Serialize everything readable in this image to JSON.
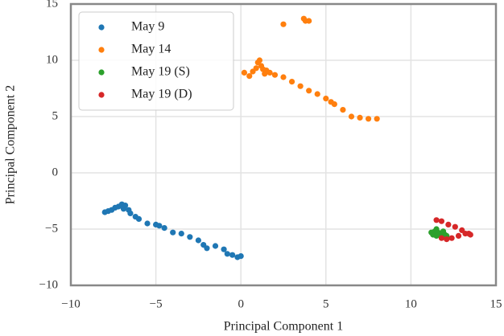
{
  "chart_data": {
    "type": "scatter",
    "xlabel": "Principal Component 1",
    "ylabel": "Principal Component 2",
    "xlim": [
      -10,
      15
    ],
    "ylim": [
      -10,
      15
    ],
    "xticks": [
      {
        "value": -10,
        "label": "−10"
      },
      {
        "value": -5,
        "label": "−5"
      },
      0,
      5,
      10,
      15
    ],
    "yticks": [
      {
        "value": -10,
        "label": "−10"
      },
      {
        "value": -5,
        "label": "−5"
      },
      0,
      5,
      10,
      15
    ],
    "grid": true,
    "legend": "upper left",
    "series": [
      {
        "name": "May 9",
        "color": "#1f77b4",
        "x": [
          -8,
          -7.8,
          -7.6,
          -7.4,
          -7.2,
          -7,
          -6.9,
          -6.8,
          -6.6,
          -6.5,
          -6.2,
          -6,
          -5.5,
          -5,
          -4.5,
          -4.8,
          -4,
          -3.5,
          -3,
          -2.5,
          -2.2,
          -2,
          -1.5,
          -1,
          -0.8,
          -0.5,
          -0.2,
          0
        ],
        "values": [
          -3.5,
          -3.4,
          -3.3,
          -3.1,
          -3.0,
          -2.8,
          -3.2,
          -2.9,
          -3.3,
          -3.6,
          -3.9,
          -4.1,
          -4.5,
          -4.6,
          -4.9,
          -4.7,
          -5.3,
          -5.4,
          -5.7,
          -6.0,
          -6.4,
          -6.7,
          -6.5,
          -6.8,
          -7.2,
          -7.3,
          -7.5,
          -7.4
        ]
      },
      {
        "name": "May 14",
        "color": "#ff7f0e",
        "x": [
          0.2,
          0.5,
          0.7,
          0.9,
          1.0,
          1.1,
          1.2,
          1.3,
          1.4,
          1.5,
          1.7,
          2,
          2.5,
          3,
          3.5,
          4,
          4.5,
          5,
          5.3,
          5.5,
          6,
          6.5,
          7,
          7.5,
          8,
          2.5,
          3.7,
          3.8,
          4.0
        ],
        "values": [
          8.9,
          8.6,
          9.0,
          9.3,
          9.8,
          10.0,
          9.5,
          9.2,
          8.8,
          9.1,
          8.9,
          8.7,
          8.5,
          8.1,
          7.7,
          7.3,
          7.0,
          6.6,
          6.3,
          6.1,
          5.6,
          5.0,
          4.9,
          4.8,
          4.8,
          13.2,
          13.7,
          13.5,
          13.5
        ]
      },
      {
        "name": "May 19 (S)",
        "color": "#2ca02c",
        "x": [
          11.2,
          11.3,
          11.4,
          11.5,
          11.6,
          11.7,
          11.8,
          11.9,
          12.0,
          12.1,
          11.5,
          11.8
        ],
        "values": [
          -5.3,
          -5.5,
          -5.2,
          -5.6,
          -5.3,
          -5.5,
          -5.4,
          -5.2,
          -5.5,
          -5.6,
          -5.0,
          -5.7
        ]
      },
      {
        "name": "May 19 (D)",
        "color": "#d62728",
        "x": [
          11.5,
          11.8,
          12.2,
          12.6,
          13,
          13.4,
          13.5,
          13.2,
          12.8,
          12.4,
          12.1,
          11.8
        ],
        "values": [
          -4.2,
          -4.3,
          -4.6,
          -4.8,
          -5.1,
          -5.4,
          -5.5,
          -5.4,
          -5.6,
          -5.8,
          -5.9,
          -5.8
        ]
      }
    ]
  }
}
